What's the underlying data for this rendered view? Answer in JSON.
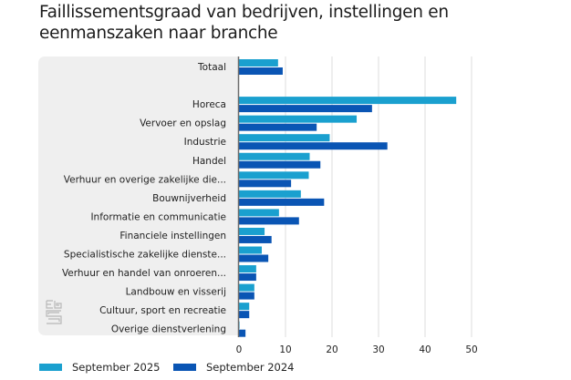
{
  "chart_data": {
    "type": "bar",
    "orientation": "horizontal",
    "title": "Faillissementsgraad van bedrijven, instellingen en eenmanszaken naar branche",
    "xlabel": "",
    "ylabel": "",
    "xlim": [
      0,
      50
    ],
    "xticks": [
      0,
      10,
      20,
      30,
      40,
      50
    ],
    "grid": true,
    "legend_position": "bottom-left",
    "categories": [
      "Totaal",
      "",
      "Horeca",
      "Vervoer en opslag",
      "Industrie",
      "Handel",
      "Verhuur en overige zakelijke die...",
      "Bouwnijverheid",
      "Informatie en communicatie",
      "Financiele instellingen",
      "Specialistische zakelijke dienste...",
      "Verhuur en handel van onroeren...",
      "Landbouw en visserij",
      "Cultuur, sport en recreatie",
      "Overige dienstverlening"
    ],
    "series": [
      {
        "name": "September 2025",
        "color": "#1aa0cf",
        "values": [
          8.4,
          null,
          46.7,
          25.3,
          19.5,
          15.2,
          15.0,
          13.3,
          8.6,
          5.5,
          4.9,
          3.7,
          3.3,
          2.2,
          0.1
        ]
      },
      {
        "name": "September 2024",
        "color": "#0a55b4",
        "values": [
          9.4,
          null,
          28.6,
          16.7,
          31.9,
          17.5,
          11.2,
          18.3,
          12.9,
          7.0,
          6.3,
          3.7,
          3.3,
          2.2,
          1.4
        ]
      }
    ]
  },
  "title": "Faillissementsgraad van bedrijven, instellingen en eenmanszaken naar branche",
  "legend": [
    {
      "label": "September 2025",
      "color": "#1aa0cf"
    },
    {
      "label": "September 2024",
      "color": "#0a55b4"
    }
  ],
  "logo": {
    "icon": "cbs-logo-icon"
  },
  "colors": {
    "panel": "#efefef",
    "grid": "#dcdcdc",
    "axis": "#6b6b6b"
  }
}
